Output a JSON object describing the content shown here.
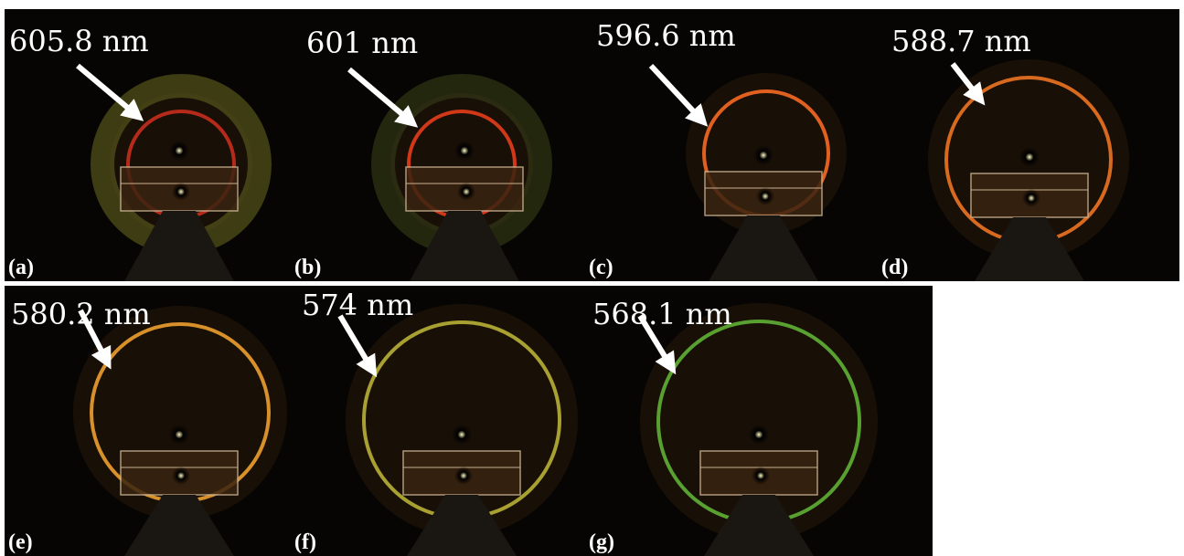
{
  "panels": [
    {
      "wavelength": "605.8 nm",
      "label": "(a)"
    },
    {
      "wavelength": "601 nm",
      "label": "(b)"
    },
    {
      "wavelength": "596.6 nm",
      "label": "(c)"
    },
    {
      "wavelength": "588.7 nm",
      "label": "(d)"
    },
    {
      "wavelength": "580.2 nm",
      "label": "(e)"
    },
    {
      "wavelength": "574 nm",
      "label": "(f)"
    },
    {
      "wavelength": "568.1 nm",
      "label": "(g)"
    }
  ]
}
